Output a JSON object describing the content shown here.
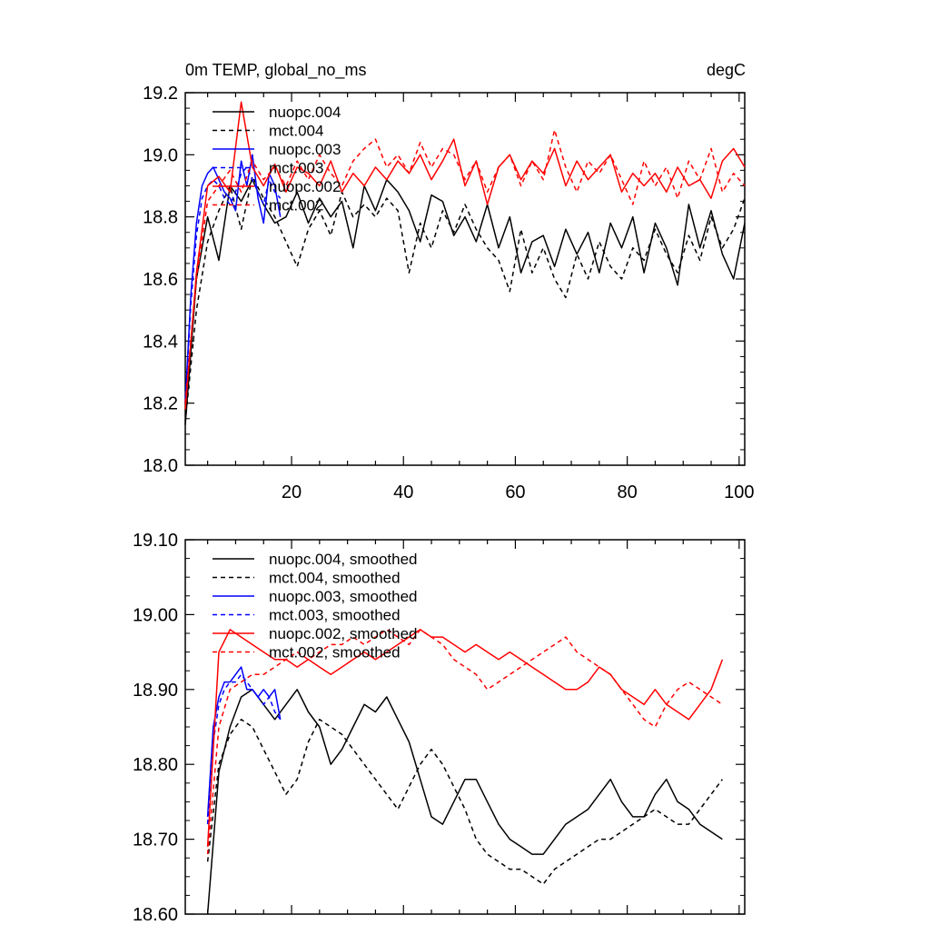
{
  "chart_data": [
    {
      "type": "line",
      "title": "0m TEMP, global_no_ms",
      "units": "degC",
      "xlim": [
        1,
        101
      ],
      "ylim": [
        18.0,
        19.2
      ],
      "xticks": [
        20,
        40,
        60,
        80,
        100
      ],
      "xtick_labels": [
        "20",
        "40",
        "60",
        "80",
        "100"
      ],
      "yticks": [
        18.0,
        18.2,
        18.4,
        18.6,
        18.8,
        19.0,
        19.2
      ],
      "ytick_labels": [
        "18.0",
        "18.2",
        "18.4",
        "18.6",
        "18.8",
        "19.0",
        "19.2"
      ],
      "legend_position": "top-left",
      "series": [
        {
          "name": "nuopc.004",
          "color": "#000000",
          "dash": "solid",
          "x": [
            1,
            3,
            5,
            7,
            9,
            11,
            13,
            15,
            17,
            19,
            21,
            23,
            25,
            27,
            29,
            31,
            33,
            35,
            37,
            39,
            41,
            43,
            45,
            47,
            49,
            51,
            53,
            55,
            57,
            59,
            61,
            63,
            65,
            67,
            69,
            71,
            73,
            75,
            77,
            79,
            81,
            83,
            85,
            87,
            89,
            91,
            93,
            95,
            97,
            99,
            101
          ],
          "y": [
            18.13,
            18.6,
            18.8,
            18.66,
            18.9,
            18.85,
            18.92,
            18.84,
            18.78,
            18.8,
            18.88,
            18.78,
            18.86,
            18.8,
            18.85,
            18.7,
            18.9,
            18.82,
            18.92,
            18.88,
            18.82,
            18.72,
            18.87,
            18.85,
            18.74,
            18.8,
            18.72,
            18.84,
            18.7,
            18.8,
            18.62,
            18.72,
            18.74,
            18.64,
            18.76,
            18.68,
            18.75,
            18.62,
            18.78,
            18.7,
            18.8,
            18.62,
            18.78,
            18.7,
            18.58,
            18.84,
            18.7,
            18.82,
            18.68,
            18.6,
            18.78
          ]
        },
        {
          "name": "mct.004",
          "color": "#000000",
          "dash": "dashed",
          "x": [
            1,
            3,
            5,
            7,
            9,
            11,
            13,
            15,
            17,
            19,
            21,
            23,
            25,
            27,
            29,
            31,
            33,
            35,
            37,
            39,
            41,
            43,
            45,
            47,
            49,
            51,
            53,
            55,
            57,
            59,
            61,
            63,
            65,
            67,
            69,
            71,
            73,
            75,
            77,
            79,
            81,
            83,
            85,
            87,
            89,
            91,
            93,
            95,
            97,
            99,
            101
          ],
          "y": [
            18.14,
            18.5,
            18.72,
            18.82,
            18.9,
            18.76,
            18.93,
            18.86,
            18.8,
            18.72,
            18.64,
            18.76,
            18.82,
            18.74,
            18.88,
            18.8,
            18.84,
            18.8,
            18.86,
            18.82,
            18.62,
            18.78,
            18.7,
            18.82,
            18.75,
            18.84,
            18.76,
            18.7,
            18.66,
            18.56,
            18.76,
            18.62,
            18.7,
            18.6,
            18.54,
            18.68,
            18.6,
            18.72,
            18.64,
            18.6,
            18.7,
            18.66,
            18.76,
            18.68,
            18.62,
            18.74,
            18.66,
            18.8,
            18.7,
            18.76,
            18.86
          ]
        },
        {
          "name": "nuopc.003",
          "color": "#0000ff",
          "dash": "solid",
          "x": [
            1,
            2,
            3,
            4,
            5,
            6,
            7,
            8,
            9,
            10,
            11,
            12,
            13,
            14,
            15,
            16,
            17,
            18
          ],
          "y": [
            18.2,
            18.55,
            18.78,
            18.9,
            18.94,
            18.96,
            18.92,
            18.88,
            18.86,
            18.82,
            18.98,
            18.9,
            19.0,
            18.86,
            18.78,
            18.94,
            18.9,
            18.8
          ]
        },
        {
          "name": "mct.003",
          "color": "#0000ff",
          "dash": "dashed",
          "x": [
            1,
            2,
            3,
            4,
            5,
            6,
            7,
            8,
            9,
            10,
            11,
            12,
            13,
            14,
            15,
            16,
            17,
            18
          ],
          "y": [
            18.2,
            18.52,
            18.74,
            18.86,
            18.9,
            18.92,
            18.9,
            18.86,
            18.84,
            18.88,
            18.94,
            18.96,
            18.92,
            18.88,
            18.84,
            18.92,
            18.88,
            18.86
          ]
        },
        {
          "name": "nuopc.002",
          "color": "#ff0000",
          "dash": "solid",
          "x": [
            1,
            3,
            5,
            7,
            9,
            11,
            13,
            15,
            17,
            19,
            21,
            23,
            25,
            27,
            29,
            31,
            33,
            35,
            37,
            39,
            41,
            43,
            45,
            47,
            49,
            51,
            53,
            55,
            57,
            59,
            61,
            63,
            65,
            67,
            69,
            71,
            73,
            75,
            77,
            79,
            81,
            83,
            85,
            87,
            89,
            91,
            93,
            95,
            97,
            99,
            101
          ],
          "y": [
            18.18,
            18.62,
            18.9,
            18.93,
            18.88,
            19.17,
            18.96,
            18.9,
            18.97,
            18.88,
            18.96,
            18.94,
            18.9,
            18.98,
            18.88,
            18.94,
            18.9,
            18.96,
            18.92,
            18.98,
            18.94,
            19.0,
            18.92,
            18.98,
            19.05,
            18.9,
            18.98,
            18.84,
            18.96,
            19.0,
            18.92,
            18.98,
            18.94,
            19.02,
            18.9,
            18.98,
            18.92,
            18.96,
            19.0,
            18.88,
            18.94,
            18.9,
            18.94,
            18.88,
            18.96,
            18.9,
            18.92,
            18.86,
            18.98,
            19.02,
            18.96
          ]
        },
        {
          "name": "mct.002",
          "color": "#ff0000",
          "dash": "dashed",
          "x": [
            1,
            3,
            5,
            7,
            9,
            11,
            13,
            15,
            17,
            19,
            21,
            23,
            25,
            27,
            29,
            31,
            33,
            35,
            37,
            39,
            41,
            43,
            45,
            47,
            49,
            51,
            53,
            55,
            57,
            59,
            61,
            63,
            65,
            67,
            69,
            71,
            73,
            75,
            77,
            79,
            81,
            83,
            85,
            87,
            89,
            91,
            93,
            95,
            97,
            99,
            101
          ],
          "y": [
            18.2,
            18.6,
            18.85,
            18.9,
            18.95,
            18.88,
            18.98,
            18.92,
            18.96,
            18.9,
            18.98,
            18.92,
            19.0,
            18.94,
            18.9,
            18.98,
            19.02,
            19.05,
            18.96,
            19.0,
            18.94,
            19.04,
            18.96,
            19.02,
            19.0,
            18.92,
            18.98,
            18.88,
            18.96,
            19.0,
            18.9,
            18.98,
            18.92,
            19.08,
            18.96,
            18.88,
            18.98,
            18.94,
            19.0,
            18.92,
            18.84,
            18.98,
            18.9,
            18.96,
            18.86,
            18.98,
            18.92,
            19.02,
            18.88,
            18.94,
            18.9
          ]
        }
      ]
    },
    {
      "type": "line",
      "xlim": [
        1,
        101
      ],
      "ylim": [
        18.6,
        19.1
      ],
      "xticks": [
        20,
        40,
        60,
        80,
        100
      ],
      "yticks": [
        18.6,
        18.7,
        18.8,
        18.9,
        19.0,
        19.1
      ],
      "ytick_labels": [
        "18.60",
        "18.70",
        "18.80",
        "18.90",
        "19.00",
        "19.10"
      ],
      "legend_position": "top-left",
      "series": [
        {
          "name": "nuopc.004, smoothed",
          "color": "#000000",
          "dash": "solid",
          "x": [
            5,
            7,
            9,
            11,
            13,
            15,
            17,
            19,
            21,
            23,
            25,
            27,
            29,
            31,
            33,
            35,
            37,
            39,
            41,
            43,
            45,
            47,
            49,
            51,
            53,
            55,
            57,
            59,
            61,
            63,
            65,
            67,
            69,
            71,
            73,
            75,
            77,
            79,
            81,
            83,
            85,
            87,
            89,
            91,
            93,
            95,
            97
          ],
          "y": [
            18.6,
            18.79,
            18.85,
            18.89,
            18.9,
            18.88,
            18.86,
            18.88,
            18.9,
            18.87,
            18.85,
            18.8,
            18.82,
            18.85,
            18.88,
            18.87,
            18.89,
            18.86,
            18.83,
            18.78,
            18.73,
            18.72,
            18.75,
            18.78,
            18.78,
            18.75,
            18.72,
            18.7,
            18.69,
            18.68,
            18.68,
            18.7,
            18.72,
            18.73,
            18.74,
            18.76,
            18.78,
            18.75,
            18.73,
            18.73,
            18.76,
            18.78,
            18.75,
            18.74,
            18.72,
            18.71,
            18.7
          ]
        },
        {
          "name": "mct.004, smoothed",
          "color": "#000000",
          "dash": "dashed",
          "x": [
            5,
            7,
            9,
            11,
            13,
            15,
            17,
            19,
            21,
            23,
            25,
            27,
            29,
            31,
            33,
            35,
            37,
            39,
            41,
            43,
            45,
            47,
            49,
            51,
            53,
            55,
            57,
            59,
            61,
            63,
            65,
            67,
            69,
            71,
            73,
            75,
            77,
            79,
            81,
            83,
            85,
            87,
            89,
            91,
            93,
            95,
            97
          ],
          "y": [
            18.67,
            18.8,
            18.84,
            18.86,
            18.85,
            18.82,
            18.79,
            18.76,
            18.78,
            18.83,
            18.86,
            18.85,
            18.84,
            18.82,
            18.8,
            18.78,
            18.76,
            18.74,
            18.77,
            18.8,
            18.82,
            18.8,
            18.77,
            18.74,
            18.7,
            18.68,
            18.67,
            18.66,
            18.66,
            18.65,
            18.64,
            18.66,
            18.67,
            18.68,
            18.69,
            18.7,
            18.7,
            18.71,
            18.72,
            18.73,
            18.74,
            18.73,
            18.72,
            18.72,
            18.74,
            18.76,
            18.78
          ]
        },
        {
          "name": "nuopc.003, smoothed",
          "color": "#0000ff",
          "dash": "solid",
          "x": [
            5,
            6,
            7,
            8,
            9,
            10,
            11,
            12,
            13,
            14,
            15,
            16,
            17,
            18
          ],
          "y": [
            18.73,
            18.85,
            18.89,
            18.91,
            18.91,
            18.92,
            18.93,
            18.9,
            18.9,
            18.89,
            18.9,
            18.89,
            18.9,
            18.86
          ]
        },
        {
          "name": "mct.003, smoothed",
          "color": "#0000ff",
          "dash": "dashed",
          "x": [
            5,
            6,
            7,
            8,
            9,
            10,
            11,
            12,
            13,
            14,
            15,
            16,
            17,
            18
          ],
          "y": [
            18.72,
            18.83,
            18.88,
            18.9,
            18.91,
            18.91,
            18.92,
            18.91,
            18.9,
            18.89,
            18.88,
            18.89,
            18.87,
            18.86
          ]
        },
        {
          "name": "nuopc.002, smoothed",
          "color": "#ff0000",
          "dash": "solid",
          "x": [
            5,
            7,
            9,
            11,
            13,
            15,
            17,
            19,
            21,
            23,
            25,
            27,
            29,
            31,
            33,
            35,
            37,
            39,
            41,
            43,
            45,
            47,
            49,
            51,
            53,
            55,
            57,
            59,
            61,
            63,
            65,
            67,
            69,
            71,
            73,
            75,
            77,
            79,
            81,
            83,
            85,
            87,
            89,
            91,
            93,
            95,
            97
          ],
          "y": [
            18.69,
            18.95,
            18.98,
            18.97,
            18.96,
            18.95,
            18.94,
            18.94,
            18.93,
            18.94,
            18.93,
            18.92,
            18.93,
            18.94,
            18.95,
            18.94,
            18.95,
            18.96,
            18.97,
            18.98,
            18.97,
            18.97,
            18.96,
            18.95,
            18.96,
            18.95,
            18.94,
            18.95,
            18.94,
            18.93,
            18.92,
            18.91,
            18.9,
            18.9,
            18.91,
            18.93,
            18.92,
            18.9,
            18.89,
            18.88,
            18.9,
            18.88,
            18.87,
            18.86,
            18.88,
            18.9,
            18.94
          ]
        },
        {
          "name": "mct.002, smoothed",
          "color": "#ff0000",
          "dash": "dashed",
          "x": [
            5,
            7,
            9,
            11,
            13,
            15,
            17,
            19,
            21,
            23,
            25,
            27,
            29,
            31,
            33,
            35,
            37,
            39,
            41,
            43,
            45,
            47,
            49,
            51,
            53,
            55,
            57,
            59,
            61,
            63,
            65,
            67,
            69,
            71,
            73,
            75,
            77,
            79,
            81,
            83,
            85,
            87,
            89,
            91,
            93,
            95,
            97
          ],
          "y": [
            18.68,
            18.85,
            18.9,
            18.91,
            18.92,
            18.92,
            18.93,
            18.94,
            18.95,
            18.94,
            18.95,
            18.96,
            18.96,
            18.97,
            18.96,
            18.97,
            18.98,
            18.97,
            18.96,
            18.98,
            18.97,
            18.96,
            18.94,
            18.93,
            18.92,
            18.9,
            18.91,
            18.92,
            18.93,
            18.94,
            18.95,
            18.96,
            18.97,
            18.95,
            18.94,
            18.93,
            18.92,
            18.9,
            18.88,
            18.86,
            18.85,
            18.88,
            18.9,
            18.91,
            18.9,
            18.89,
            18.88
          ]
        }
      ]
    }
  ]
}
